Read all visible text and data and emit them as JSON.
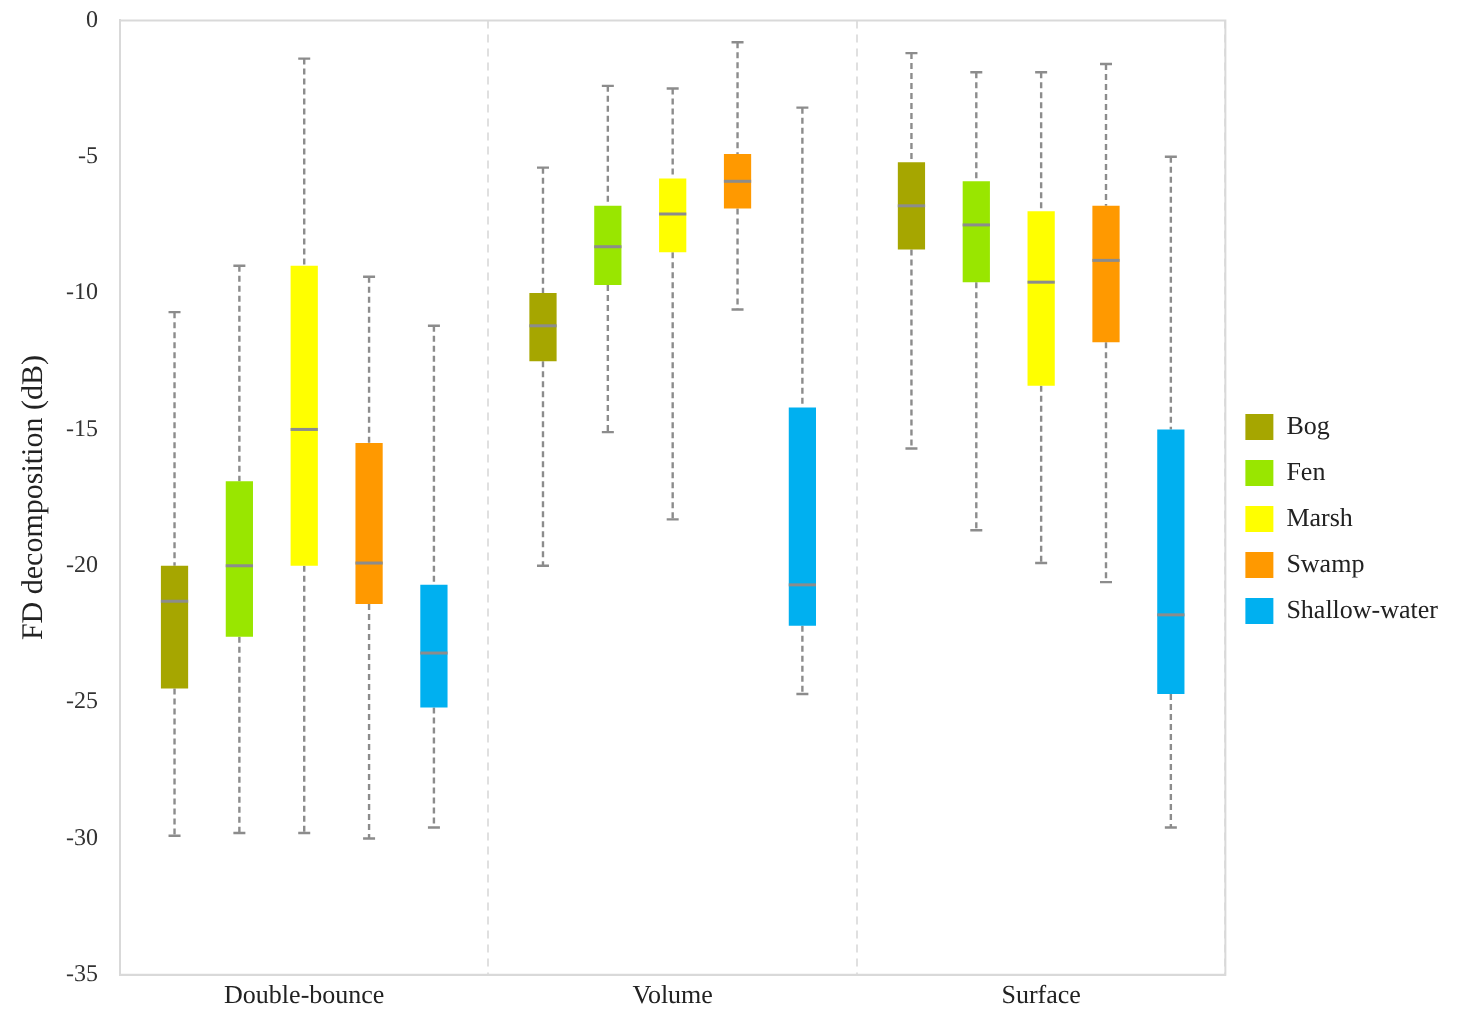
{
  "chart_data": {
    "type": "box",
    "ylabel": "FD decomposition (dB)",
    "categories": [
      "Double-bounce",
      "Volume",
      "Surface"
    ],
    "ylim": [
      -35,
      0
    ],
    "yticks": [
      -35,
      -30,
      -25,
      -20,
      -15,
      -10,
      -5,
      0
    ],
    "grid": "x",
    "legend": "right",
    "series": [
      {
        "name": "Bog",
        "color": "#a6a600",
        "boxes": [
          {
            "low": -29.9,
            "q1": -24.5,
            "median": -21.3,
            "q3": -20.0,
            "high": -10.7
          },
          {
            "low": -20.0,
            "q1": -12.5,
            "median": -11.2,
            "q3": -10.0,
            "high": -5.4
          },
          {
            "low": -15.7,
            "q1": -8.4,
            "median": -6.8,
            "q3": -5.2,
            "high": -1.2
          }
        ]
      },
      {
        "name": "Fen",
        "color": "#99e600",
        "boxes": [
          {
            "low": -29.8,
            "q1": -22.6,
            "median": -20.0,
            "q3": -16.9,
            "high": -9.0
          },
          {
            "low": -15.1,
            "q1": -9.7,
            "median": -8.3,
            "q3": -6.8,
            "high": -2.4
          },
          {
            "low": -18.7,
            "q1": -9.6,
            "median": -7.5,
            "q3": -5.9,
            "high": -1.9
          }
        ]
      },
      {
        "name": "Marsh",
        "color": "#ffff00",
        "boxes": [
          {
            "low": -29.8,
            "q1": -20.0,
            "median": -15.0,
            "q3": -9.0,
            "high": -1.4
          },
          {
            "low": -18.3,
            "q1": -8.5,
            "median": -7.1,
            "q3": -5.8,
            "high": -2.5
          },
          {
            "low": -19.9,
            "q1": -13.4,
            "median": -9.6,
            "q3": -7.0,
            "high": -1.9
          }
        ]
      },
      {
        "name": "Swamp",
        "color": "#ff9900",
        "boxes": [
          {
            "low": -30.0,
            "q1": -21.4,
            "median": -19.9,
            "q3": -15.5,
            "high": -9.4
          },
          {
            "low": -10.6,
            "q1": -6.9,
            "median": -5.9,
            "q3": -4.9,
            "high": -0.8
          },
          {
            "low": -20.6,
            "q1": -11.8,
            "median": -8.8,
            "q3": -6.8,
            "high": -1.6
          }
        ]
      },
      {
        "name": "Shallow-water",
        "color": "#00b0f0",
        "boxes": [
          {
            "low": -29.6,
            "q1": -25.2,
            "median": -23.2,
            "q3": -20.7,
            "high": -11.2
          },
          {
            "low": -24.7,
            "q1": -22.2,
            "median": -20.7,
            "q3": -14.2,
            "high": -3.2
          },
          {
            "low": -29.6,
            "q1": -24.7,
            "median": -21.8,
            "q3": -15.0,
            "high": -5.0
          }
        ]
      }
    ]
  }
}
